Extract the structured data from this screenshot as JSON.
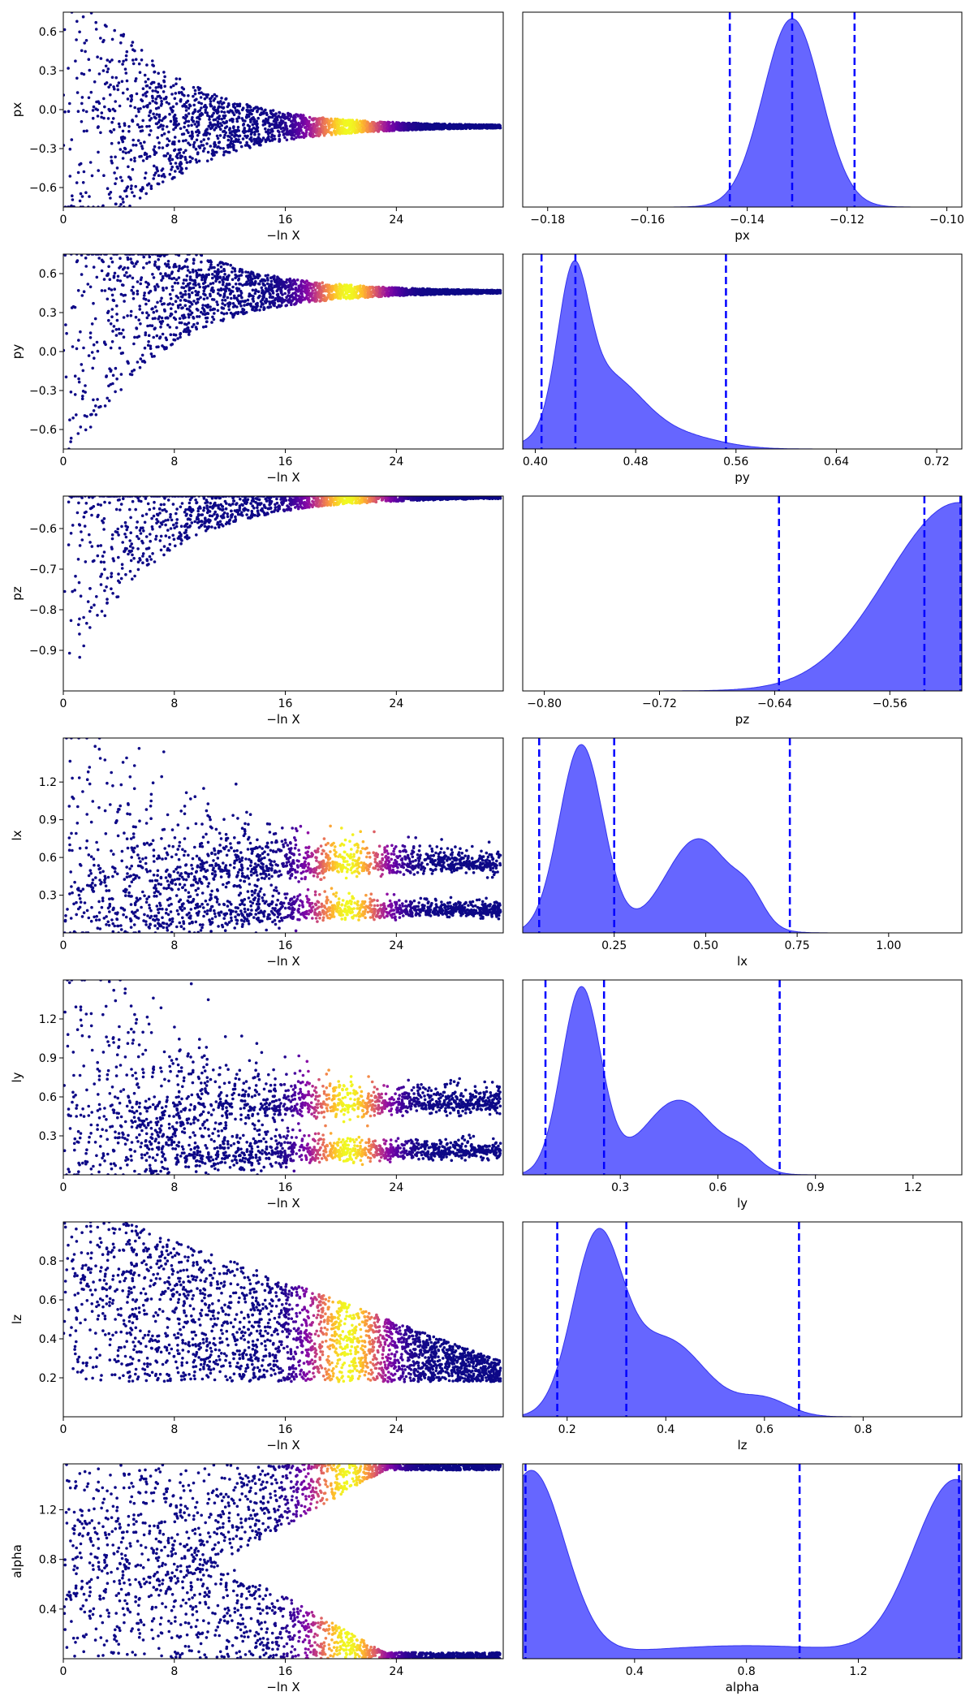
{
  "figure": {
    "colors": {
      "kde_fill": "#6666ff",
      "kde_edge": "#3333ee",
      "quantile_line": "#0000ff",
      "background": "#ffffff",
      "axis": "#000000"
    },
    "colormap": "plasma"
  },
  "chart_data": [
    {
      "panel": "trace",
      "type": "scatter",
      "param": "px",
      "xlabel": "−ln X",
      "ylabel": "px",
      "xlim": [
        0,
        31.7
      ],
      "xticks": [
        "0",
        "8",
        "16",
        "24"
      ],
      "xtick_values": [
        0,
        8,
        16,
        24
      ],
      "ylim": [
        -0.75,
        0.75
      ],
      "yticks": [
        "−0.6",
        "−0.3",
        "0.0",
        "0.3",
        "0.6"
      ],
      "ytick_values": [
        -0.6,
        -0.3,
        0.0,
        0.3,
        0.6
      ],
      "shape": "funnel",
      "converge_to": [
        -0.13
      ],
      "spread_start": 0.75,
      "end_x": 31.5,
      "colorbar_peak": 20.5
    },
    {
      "panel": "posterior",
      "type": "area",
      "param": "px",
      "xlabel": "px",
      "xlim": [
        -0.185,
        -0.097
      ],
      "xticks": [
        "−0.18",
        "−0.16",
        "−0.14",
        "−0.12",
        "−0.10"
      ],
      "xtick_values": [
        -0.18,
        -0.16,
        -0.14,
        -0.12,
        -0.1
      ],
      "density_components": [
        {
          "mu": -0.131,
          "sigma": 0.0058,
          "weight": 1
        }
      ],
      "quantiles": [
        -0.1435,
        -0.131,
        -0.1185
      ]
    },
    {
      "panel": "trace",
      "type": "scatter",
      "param": "py",
      "xlabel": "−ln X",
      "ylabel": "py",
      "xlim": [
        0,
        31.7
      ],
      "xticks": [
        "0",
        "8",
        "16",
        "24"
      ],
      "xtick_values": [
        0,
        8,
        16,
        24
      ],
      "ylim": [
        -0.75,
        0.75
      ],
      "yticks": [
        "−0.6",
        "−0.3",
        "0.0",
        "0.3",
        "0.6"
      ],
      "ytick_values": [
        -0.6,
        -0.3,
        0.0,
        0.3,
        0.6
      ],
      "shape": "funnel",
      "converge_to": [
        0.46
      ],
      "spread_start": 0.75,
      "end_x": 31.5,
      "colorbar_peak": 20.5
    },
    {
      "panel": "posterior",
      "type": "area",
      "param": "py",
      "xlabel": "py",
      "xlim": [
        0.39,
        0.74
      ],
      "xticks": [
        "0.40",
        "0.48",
        "0.56",
        "0.64",
        "0.72"
      ],
      "xtick_values": [
        0.4,
        0.48,
        0.56,
        0.64,
        0.72
      ],
      "density_components": [
        {
          "mu": 0.43,
          "sigma": 0.012,
          "weight": 1
        },
        {
          "mu": 0.455,
          "sigma": 0.03,
          "weight": 0.55
        },
        {
          "mu": 0.52,
          "sigma": 0.03,
          "weight": 0.08
        }
      ],
      "quantiles": [
        0.405,
        0.432,
        0.552
      ]
    },
    {
      "panel": "trace",
      "type": "scatter",
      "param": "pz",
      "xlabel": "−ln X",
      "ylabel": "pz",
      "xlim": [
        0,
        31.7
      ],
      "xticks": [
        "0",
        "8",
        "16",
        "24"
      ],
      "xtick_values": [
        0,
        8,
        16,
        24
      ],
      "ylim": [
        -1.0,
        -0.52
      ],
      "yticks": [
        "−0.9",
        "−0.8",
        "−0.7",
        "−0.6"
      ],
      "ytick_values": [
        -0.9,
        -0.8,
        -0.7,
        -0.6
      ],
      "shape": "funnel",
      "converge_to": [
        -0.52
      ],
      "spread_start": 0.48,
      "end_x": 31.5,
      "colorbar_peak": 20.5
    },
    {
      "panel": "posterior",
      "type": "area",
      "param": "pz",
      "xlabel": "pz",
      "xlim": [
        -0.815,
        -0.51
      ],
      "xticks": [
        "−0.80",
        "−0.72",
        "−0.64",
        "−0.56"
      ],
      "xtick_values": [
        -0.8,
        -0.72,
        -0.64,
        -0.56
      ],
      "density_components": [
        {
          "mu": -0.512,
          "sigma": 0.05,
          "weight": 1
        }
      ],
      "quantiles": [
        -0.637,
        -0.536,
        -0.511
      ]
    },
    {
      "panel": "trace",
      "type": "scatter",
      "param": "lx",
      "xlabel": "−ln X",
      "ylabel": "lx",
      "xlim": [
        0,
        31.7
      ],
      "xticks": [
        "0",
        "8",
        "16",
        "24"
      ],
      "xtick_values": [
        0,
        8,
        16,
        24
      ],
      "ylim": [
        0.0,
        1.55
      ],
      "yticks": [
        "0.3",
        "0.6",
        "0.9",
        "1.2"
      ],
      "ytick_values": [
        0.3,
        0.6,
        0.9,
        1.2
      ],
      "shape": "two-lobe",
      "converge_to": [
        0.55,
        0.18
      ],
      "spread_start": 1.55,
      "end_x": 31.5,
      "colorbar_peak": 20.5
    },
    {
      "panel": "posterior",
      "type": "area",
      "param": "lx",
      "xlabel": "lx",
      "xlim": [
        0.0,
        1.2
      ],
      "xticks": [
        "0.25",
        "0.50",
        "0.75",
        "1.00"
      ],
      "xtick_values": [
        0.25,
        0.5,
        0.75,
        1.0
      ],
      "density_components": [
        {
          "mu": 0.16,
          "sigma": 0.06,
          "weight": 1
        },
        {
          "mu": 0.48,
          "sigma": 0.09,
          "weight": 0.5
        },
        {
          "mu": 0.62,
          "sigma": 0.04,
          "weight": 0.12
        }
      ],
      "quantiles": [
        0.045,
        0.25,
        0.73
      ]
    },
    {
      "panel": "trace",
      "type": "scatter",
      "param": "ly",
      "xlabel": "−ln X",
      "ylabel": "ly",
      "xlim": [
        0,
        31.7
      ],
      "xticks": [
        "0",
        "8",
        "16",
        "24"
      ],
      "xtick_values": [
        0,
        8,
        16,
        24
      ],
      "ylim": [
        0.0,
        1.5
      ],
      "yticks": [
        "0.3",
        "0.6",
        "0.9",
        "1.2"
      ],
      "ytick_values": [
        0.3,
        0.6,
        0.9,
        1.2
      ],
      "shape": "two-lobe",
      "converge_to": [
        0.55,
        0.18
      ],
      "spread_start": 1.5,
      "end_x": 31.5,
      "colorbar_peak": 20.5
    },
    {
      "panel": "posterior",
      "type": "area",
      "param": "ly",
      "xlabel": "ly",
      "xlim": [
        0.0,
        1.35
      ],
      "xticks": [
        "0.3",
        "0.6",
        "0.9",
        "1.2"
      ],
      "xtick_values": [
        0.3,
        0.6,
        0.9,
        1.2
      ],
      "density_components": [
        {
          "mu": 0.18,
          "sigma": 0.06,
          "weight": 1
        },
        {
          "mu": 0.48,
          "sigma": 0.11,
          "weight": 0.4
        },
        {
          "mu": 0.68,
          "sigma": 0.05,
          "weight": 0.08
        }
      ],
      "quantiles": [
        0.07,
        0.25,
        0.79
      ]
    },
    {
      "panel": "trace",
      "type": "scatter",
      "param": "lz",
      "xlabel": "−ln X",
      "ylabel": "lz",
      "xlim": [
        0,
        31.7
      ],
      "xticks": [
        "0",
        "8",
        "16",
        "24"
      ],
      "xtick_values": [
        0,
        8,
        16,
        24
      ],
      "ylim": [
        0.0,
        1.0
      ],
      "yticks": [
        "0.2",
        "0.4",
        "0.6",
        "0.8"
      ],
      "ytick_values": [
        0.2,
        0.4,
        0.6,
        0.8
      ],
      "shape": "triangle",
      "converge_to": [
        0.2
      ],
      "spread_start": 1.0,
      "end_x": 31.5,
      "colorbar_peak": 20.5
    },
    {
      "panel": "posterior",
      "type": "area",
      "param": "lz",
      "xlabel": "lz",
      "xlim": [
        0.11,
        1.0
      ],
      "xticks": [
        "0.2",
        "0.4",
        "0.6",
        "0.8"
      ],
      "xtick_values": [
        0.2,
        0.4,
        0.6,
        0.8
      ],
      "density_components": [
        {
          "mu": 0.26,
          "sigma": 0.05,
          "weight": 1
        },
        {
          "mu": 0.4,
          "sigma": 0.08,
          "weight": 0.45
        },
        {
          "mu": 0.6,
          "sigma": 0.05,
          "weight": 0.1
        }
      ],
      "quantiles": [
        0.18,
        0.32,
        0.67
      ]
    },
    {
      "panel": "trace",
      "type": "scatter",
      "param": "alpha",
      "xlabel": "−ln X",
      "ylabel": "alpha",
      "xlim": [
        0,
        31.7
      ],
      "xticks": [
        "0",
        "8",
        "16",
        "24"
      ],
      "xtick_values": [
        0,
        8,
        16,
        24
      ],
      "ylim": [
        0.0,
        1.57
      ],
      "yticks": [
        "0.4",
        "0.8",
        "1.2"
      ],
      "ytick_values": [
        0.4,
        0.8,
        1.2
      ],
      "shape": "bimodal-edges",
      "converge_to": [
        1.57,
        0.0
      ],
      "spread_start": 1.57,
      "end_x": 31.5,
      "colorbar_peak": 20.5
    },
    {
      "panel": "posterior",
      "type": "area",
      "param": "alpha",
      "xlabel": "alpha",
      "xlim": [
        0.0,
        1.57
      ],
      "xticks": [
        "0.4",
        "0.8",
        "1.2"
      ],
      "xtick_values": [
        0.4,
        0.8,
        1.2
      ],
      "density_components": [
        {
          "mu": 0.03,
          "sigma": 0.12,
          "weight": 1
        },
        {
          "mu": 1.55,
          "sigma": 0.15,
          "weight": 0.95
        },
        {
          "mu": 0.8,
          "sigma": 0.4,
          "weight": 0.07
        }
      ],
      "quantiles": [
        0.01,
        0.99,
        1.56
      ]
    }
  ]
}
